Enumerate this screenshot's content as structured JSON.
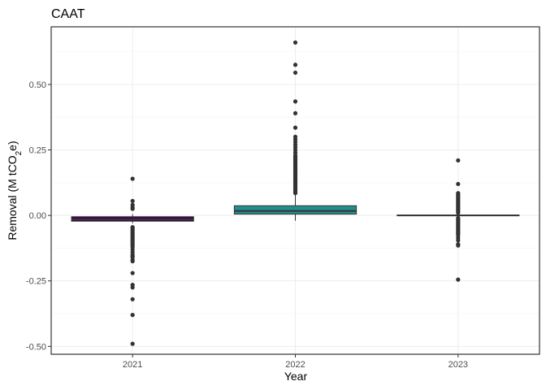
{
  "chart_data": {
    "type": "box",
    "title": "CAAT",
    "xlabel": "Year",
    "ylabel": {
      "prefix": "Removal (M tCO",
      "subscript": "2",
      "suffix": "e)"
    },
    "categories": [
      "2021",
      "2022",
      "2023"
    ],
    "ylim": [
      -0.53,
      0.72
    ],
    "yticks": [
      -0.5,
      -0.25,
      0.0,
      0.25,
      0.5
    ],
    "ytick_labels": [
      "-0.50",
      "-0.25",
      "0.00",
      "0.25",
      "0.50"
    ],
    "grid": true,
    "legend": "none",
    "boxes": [
      {
        "category": "2021",
        "fill": "#440154",
        "whisker_low": -0.03,
        "q1": -0.022,
        "median": -0.015,
        "q3": -0.005,
        "whisker_high": 0.005,
        "outliers": [
          0.14,
          0.055,
          0.04,
          0.03,
          0.025,
          -0.045,
          -0.05,
          -0.055,
          -0.06,
          -0.065,
          -0.07,
          -0.075,
          -0.08,
          -0.085,
          -0.09,
          -0.095,
          -0.1,
          -0.105,
          -0.11,
          -0.115,
          -0.12,
          -0.13,
          -0.14,
          -0.15,
          -0.155,
          -0.16,
          -0.17,
          -0.175,
          -0.22,
          -0.265,
          -0.275,
          -0.32,
          -0.38,
          -0.49
        ]
      },
      {
        "category": "2022",
        "fill": "#21908C",
        "whisker_low": -0.02,
        "q1": 0.005,
        "median": 0.017,
        "q3": 0.037,
        "whisker_high": 0.08,
        "outliers": [
          0.085,
          0.09,
          0.095,
          0.1,
          0.105,
          0.11,
          0.115,
          0.12,
          0.125,
          0.13,
          0.135,
          0.14,
          0.145,
          0.15,
          0.155,
          0.16,
          0.165,
          0.17,
          0.175,
          0.18,
          0.185,
          0.19,
          0.195,
          0.2,
          0.205,
          0.21,
          0.215,
          0.22,
          0.225,
          0.23,
          0.24,
          0.25,
          0.26,
          0.27,
          0.28,
          0.29,
          0.3,
          0.335,
          0.39,
          0.435,
          0.545,
          0.575,
          0.66
        ]
      },
      {
        "category": "2023",
        "fill": "#FDE725",
        "whisker_low": -0.002,
        "q1": -0.001,
        "median": 0.0,
        "q3": 0.001,
        "whisker_high": 0.002,
        "outliers": [
          0.21,
          0.12,
          0.085,
          0.08,
          0.075,
          0.07,
          0.065,
          0.06,
          0.055,
          0.05,
          0.045,
          0.04,
          0.035,
          0.03,
          0.025,
          0.02,
          0.015,
          0.01,
          -0.01,
          -0.015,
          -0.02,
          -0.025,
          -0.03,
          -0.035,
          -0.04,
          -0.045,
          -0.05,
          -0.055,
          -0.06,
          -0.065,
          -0.07,
          -0.075,
          -0.085,
          -0.095,
          -0.11,
          -0.115,
          -0.245
        ]
      }
    ],
    "colors": {
      "outline": "#333333",
      "outlier": "#333333",
      "panel_border": "#333333",
      "grid": "#ebebeb"
    }
  }
}
